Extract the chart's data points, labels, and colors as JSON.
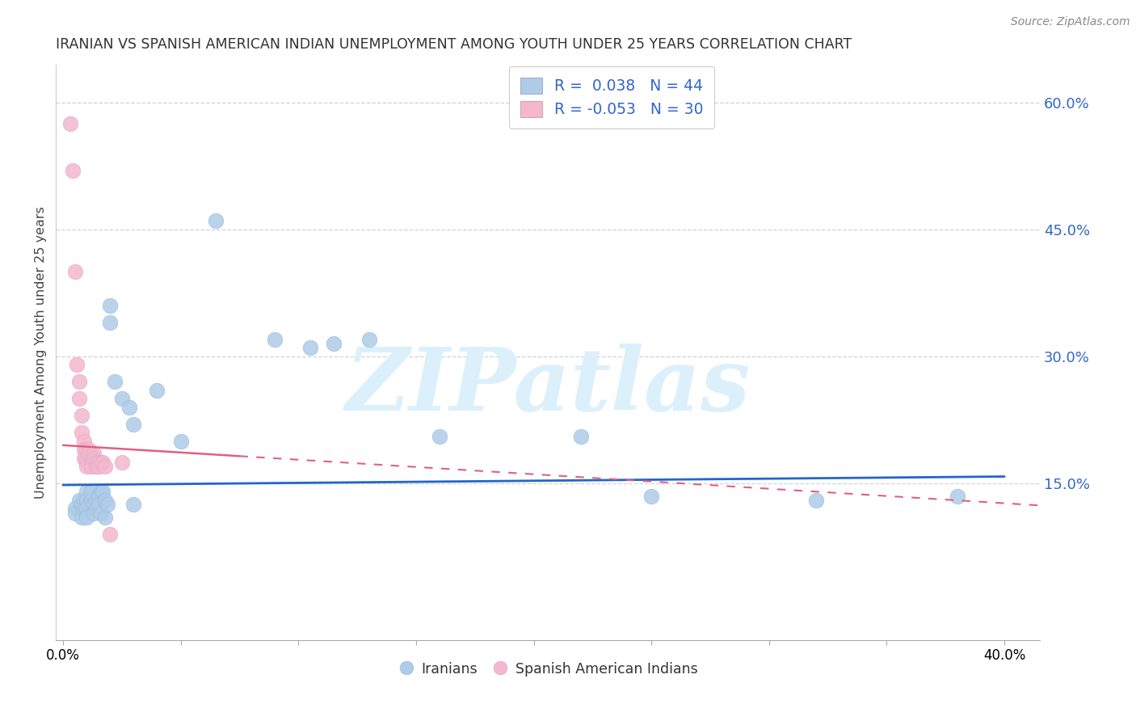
{
  "title": "IRANIAN VS SPANISH AMERICAN INDIAN UNEMPLOYMENT AMONG YOUTH UNDER 25 YEARS CORRELATION CHART",
  "source": "Source: ZipAtlas.com",
  "ylabel": "Unemployment Among Youth under 25 years",
  "x_ticks": [
    0.0,
    0.05,
    0.1,
    0.15,
    0.2,
    0.25,
    0.3,
    0.35,
    0.4
  ],
  "x_tick_labels": [
    "0.0%",
    "",
    "",
    "",
    "",
    "",
    "",
    "",
    "40.0%"
  ],
  "y_ticks_right": [
    0.15,
    0.3,
    0.45,
    0.6
  ],
  "y_tick_labels_right": [
    "15.0%",
    "30.0%",
    "45.0%",
    "60.0%"
  ],
  "xlim": [
    -0.003,
    0.415
  ],
  "ylim": [
    -0.035,
    0.645
  ],
  "blue_R": 0.038,
  "blue_N": 44,
  "pink_R": -0.053,
  "pink_N": 30,
  "blue_color": "#AECCE8",
  "pink_color": "#F4B8CC",
  "blue_line_color": "#2266CC",
  "pink_line_color": "#E06080",
  "watermark_color": "#DCF0FC",
  "legend_label_blue": "Iranians",
  "legend_label_pink": "Spanish American Indians",
  "background_color": "#FFFFFF",
  "grid_color": "#C8C8C8",
  "title_color": "#333333",
  "right_axis_color": "#3366CC",
  "legend_R_color": "#3366CC",
  "legend_N_color": "#3366CC",
  "blue_scatter_x": [
    0.005,
    0.005,
    0.007,
    0.008,
    0.008,
    0.009,
    0.009,
    0.01,
    0.01,
    0.01,
    0.01,
    0.012,
    0.012,
    0.013,
    0.013,
    0.014,
    0.014,
    0.015,
    0.015,
    0.016,
    0.016,
    0.017,
    0.018,
    0.018,
    0.019,
    0.02,
    0.02,
    0.022,
    0.025,
    0.028,
    0.03,
    0.03,
    0.04,
    0.05,
    0.065,
    0.09,
    0.105,
    0.115,
    0.13,
    0.16,
    0.22,
    0.25,
    0.32,
    0.38
  ],
  "blue_scatter_y": [
    0.12,
    0.115,
    0.13,
    0.125,
    0.11,
    0.13,
    0.12,
    0.14,
    0.13,
    0.12,
    0.11,
    0.13,
    0.14,
    0.125,
    0.115,
    0.13,
    0.12,
    0.135,
    0.125,
    0.14,
    0.115,
    0.14,
    0.13,
    0.11,
    0.125,
    0.36,
    0.34,
    0.27,
    0.25,
    0.24,
    0.22,
    0.125,
    0.26,
    0.2,
    0.46,
    0.32,
    0.31,
    0.315,
    0.32,
    0.205,
    0.205,
    0.135,
    0.13,
    0.135
  ],
  "pink_scatter_x": [
    0.003,
    0.004,
    0.005,
    0.006,
    0.007,
    0.007,
    0.008,
    0.008,
    0.009,
    0.009,
    0.009,
    0.01,
    0.01,
    0.01,
    0.01,
    0.011,
    0.011,
    0.012,
    0.012,
    0.013,
    0.013,
    0.014,
    0.014,
    0.015,
    0.015,
    0.016,
    0.017,
    0.018,
    0.02,
    0.025
  ],
  "pink_scatter_y": [
    0.575,
    0.52,
    0.4,
    0.29,
    0.27,
    0.25,
    0.23,
    0.21,
    0.2,
    0.19,
    0.18,
    0.19,
    0.18,
    0.175,
    0.17,
    0.19,
    0.185,
    0.175,
    0.17,
    0.185,
    0.18,
    0.175,
    0.17,
    0.175,
    0.17,
    0.175,
    0.175,
    0.17,
    0.09,
    0.175
  ],
  "blue_line_x": [
    0.0,
    0.4
  ],
  "blue_line_y": [
    0.148,
    0.158
  ],
  "pink_line_x": [
    0.0,
    0.35
  ],
  "pink_line_y": [
    0.195,
    0.135
  ]
}
